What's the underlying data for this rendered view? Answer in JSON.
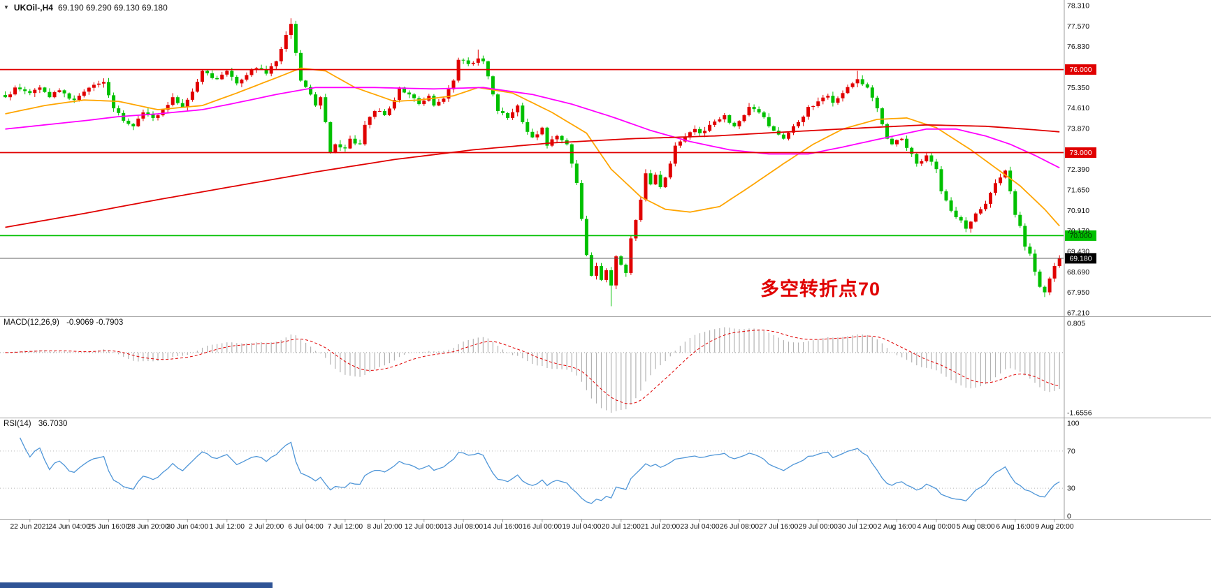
{
  "header": {
    "collapse_icon": "▼",
    "symbol_period": "UKOil-,H4",
    "ohlc": "69.190 69.290 69.130 69.180"
  },
  "annotation": {
    "text": "多空转折点70",
    "color": "#e00000"
  },
  "panels": {
    "macd": {
      "name_label": "MACD(12,26,9)",
      "values_label": "-0.9069 -0.7903",
      "axis": [
        {
          "label": "0.805",
          "value": 0.805
        },
        {
          "label": "-1.6556",
          "value": -1.6556
        }
      ]
    },
    "rsi": {
      "name_label": "RSI(14)",
      "value_label": "36.7030",
      "axis": [
        {
          "label": "100",
          "value": 100
        },
        {
          "label": "70",
          "value": 70
        },
        {
          "label": "30",
          "value": 30
        },
        {
          "label": "0",
          "value": 0
        }
      ],
      "levels": [
        70,
        30
      ]
    }
  },
  "bottom_bar": {
    "color": "#2f5496"
  },
  "chart_data": {
    "type": "candlestick",
    "symbol": "UKOil-",
    "timeframe": "H4",
    "price_axis": {
      "min": 67.21,
      "max": 78.31,
      "ticks": [
        {
          "label": "78.310",
          "value": 78.31
        },
        {
          "label": "77.570",
          "value": 77.57
        },
        {
          "label": "76.830",
          "value": 76.83
        },
        {
          "label": "75.350",
          "value": 75.35
        },
        {
          "label": "74.610",
          "value": 74.61
        },
        {
          "label": "73.870",
          "value": 73.87
        },
        {
          "label": "72.390",
          "value": 72.39
        },
        {
          "label": "71.650",
          "value": 71.65
        },
        {
          "label": "70.910",
          "value": 70.91
        },
        {
          "label": "70.170",
          "value": 70.17
        },
        {
          "label": "69.430",
          "value": 69.43
        },
        {
          "label": "68.690",
          "value": 68.69
        },
        {
          "label": "67.950",
          "value": 67.95
        },
        {
          "label": "67.210",
          "value": 67.21
        }
      ]
    },
    "hlines": [
      {
        "value": 76.0,
        "label": "76.000",
        "color": "#e00000",
        "text_color": "#ffffff"
      },
      {
        "value": 73.0,
        "label": "73.000",
        "color": "#e00000",
        "text_color": "#ffffff"
      },
      {
        "value": 70.0,
        "label": "70.000",
        "color": "#00c000",
        "text_color": "#003300"
      }
    ],
    "current_price": {
      "value": 69.18,
      "label": "69.180",
      "line_color": "#555555",
      "badge_color": "#000000",
      "text_color": "#ffffff"
    },
    "candle_count": 215,
    "seed": 11,
    "close_path": [
      [
        0,
        75.0
      ],
      [
        1,
        75.1
      ],
      [
        2,
        75.35
      ],
      [
        5,
        75.15
      ],
      [
        7,
        75.35
      ],
      [
        9,
        75.0
      ],
      [
        11,
        75.25
      ],
      [
        14,
        74.9
      ],
      [
        16,
        75.2
      ],
      [
        18,
        75.45
      ],
      [
        20,
        75.55
      ],
      [
        22,
        74.6
      ],
      [
        24,
        74.15
      ],
      [
        26,
        73.95
      ],
      [
        28,
        74.45
      ],
      [
        30,
        74.25
      ],
      [
        32,
        74.55
      ],
      [
        34,
        75.0
      ],
      [
        36,
        74.65
      ],
      [
        38,
        75.2
      ],
      [
        40,
        75.95
      ],
      [
        43,
        75.65
      ],
      [
        45,
        75.95
      ],
      [
        47,
        75.5
      ],
      [
        49,
        75.8
      ],
      [
        51,
        76.05
      ],
      [
        53,
        75.85
      ],
      [
        55,
        76.3
      ],
      [
        57,
        77.25
      ],
      [
        58,
        77.65
      ],
      [
        59,
        76.6
      ],
      [
        60,
        75.6
      ],
      [
        62,
        75.1
      ],
      [
        63,
        74.7
      ],
      [
        64,
        75.0
      ],
      [
        65,
        74.1
      ],
      [
        66,
        73.0
      ],
      [
        67,
        73.3
      ],
      [
        69,
        73.15
      ],
      [
        70,
        73.5
      ],
      [
        72,
        73.3
      ],
      [
        73,
        74.0
      ],
      [
        75,
        74.5
      ],
      [
        77,
        74.35
      ],
      [
        79,
        74.9
      ],
      [
        80,
        75.35
      ],
      [
        82,
        75.1
      ],
      [
        84,
        74.75
      ],
      [
        86,
        75.05
      ],
      [
        87,
        74.7
      ],
      [
        89,
        74.95
      ],
      [
        91,
        75.6
      ],
      [
        92,
        76.35
      ],
      [
        94,
        76.2
      ],
      [
        96,
        76.4
      ],
      [
        97,
        76.3
      ],
      [
        99,
        75.1
      ],
      [
        100,
        74.5
      ],
      [
        102,
        74.25
      ],
      [
        104,
        74.7
      ],
      [
        105,
        74.1
      ],
      [
        107,
        73.55
      ],
      [
        109,
        73.9
      ],
      [
        110,
        73.25
      ],
      [
        112,
        73.6
      ],
      [
        114,
        73.3
      ],
      [
        115,
        72.6
      ],
      [
        116,
        71.9
      ],
      [
        118,
        69.3
      ],
      [
        119,
        68.55
      ],
      [
        120,
        68.9
      ],
      [
        121,
        68.4
      ],
      [
        122,
        68.75
      ],
      [
        123,
        68.2
      ],
      [
        124,
        69.25
      ],
      [
        125,
        68.95
      ],
      [
        126,
        68.65
      ],
      [
        127,
        69.9
      ],
      [
        129,
        71.3
      ],
      [
        130,
        72.25
      ],
      [
        131,
        71.85
      ],
      [
        132,
        72.2
      ],
      [
        133,
        71.75
      ],
      [
        134,
        72.1
      ],
      [
        135,
        72.6
      ],
      [
        136,
        73.25
      ],
      [
        138,
        73.55
      ],
      [
        140,
        73.85
      ],
      [
        141,
        73.7
      ],
      [
        143,
        74.0
      ],
      [
        145,
        74.2
      ],
      [
        146,
        74.35
      ],
      [
        148,
        73.95
      ],
      [
        150,
        74.35
      ],
      [
        151,
        74.65
      ],
      [
        153,
        74.45
      ],
      [
        155,
        73.95
      ],
      [
        157,
        73.65
      ],
      [
        158,
        73.5
      ],
      [
        160,
        73.95
      ],
      [
        162,
        74.3
      ],
      [
        163,
        74.65
      ],
      [
        165,
        74.85
      ],
      [
        167,
        75.05
      ],
      [
        168,
        74.8
      ],
      [
        170,
        75.15
      ],
      [
        172,
        75.5
      ],
      [
        173,
        75.65
      ],
      [
        175,
        75.35
      ],
      [
        177,
        74.6
      ],
      [
        179,
        73.5
      ],
      [
        180,
        73.3
      ],
      [
        182,
        73.5
      ],
      [
        184,
        72.95
      ],
      [
        185,
        72.6
      ],
      [
        187,
        72.9
      ],
      [
        189,
        72.4
      ],
      [
        190,
        71.6
      ],
      [
        192,
        70.9
      ],
      [
        194,
        70.55
      ],
      [
        195,
        70.25
      ],
      [
        197,
        70.8
      ],
      [
        199,
        71.15
      ],
      [
        200,
        71.55
      ],
      [
        202,
        72.1
      ],
      [
        203,
        72.35
      ],
      [
        204,
        71.6
      ],
      [
        205,
        70.75
      ],
      [
        206,
        70.35
      ],
      [
        207,
        69.6
      ],
      [
        208,
        69.35
      ],
      [
        209,
        68.7
      ],
      [
        210,
        68.15
      ],
      [
        211,
        67.95
      ],
      [
        212,
        68.45
      ],
      [
        213,
        68.9
      ],
      [
        214,
        69.18
      ]
    ],
    "special_wicks": [
      {
        "i": 58,
        "high": 77.85
      },
      {
        "i": 96,
        "high": 76.72
      },
      {
        "i": 123,
        "low": 67.45
      },
      {
        "i": 173,
        "high": 75.95
      },
      {
        "i": 211,
        "low": 67.78
      }
    ],
    "ma_lines": [
      {
        "name": "ma-fast-orange",
        "color": "#ffa500",
        "points": [
          [
            0,
            74.4
          ],
          [
            8,
            74.7
          ],
          [
            16,
            74.9
          ],
          [
            23,
            74.85
          ],
          [
            31,
            74.55
          ],
          [
            40,
            74.7
          ],
          [
            47,
            75.15
          ],
          [
            55,
            75.7
          ],
          [
            60,
            76.05
          ],
          [
            65,
            75.95
          ],
          [
            71,
            75.35
          ],
          [
            79,
            74.85
          ],
          [
            84,
            74.9
          ],
          [
            91,
            75.05
          ],
          [
            96,
            75.35
          ],
          [
            103,
            75.15
          ],
          [
            111,
            74.45
          ],
          [
            118,
            73.7
          ],
          [
            123,
            72.4
          ],
          [
            129,
            71.4
          ],
          [
            134,
            70.95
          ],
          [
            139,
            70.85
          ],
          [
            145,
            71.05
          ],
          [
            151,
            71.75
          ],
          [
            158,
            72.6
          ],
          [
            164,
            73.3
          ],
          [
            170,
            73.85
          ],
          [
            177,
            74.2
          ],
          [
            183,
            74.25
          ],
          [
            189,
            73.9
          ],
          [
            196,
            73.1
          ],
          [
            201,
            72.45
          ],
          [
            206,
            71.8
          ],
          [
            211,
            70.95
          ],
          [
            214,
            70.35
          ]
        ]
      },
      {
        "name": "ma-mid-magenta",
        "color": "#ff00ff",
        "points": [
          [
            0,
            73.85
          ],
          [
            8,
            74.0
          ],
          [
            16,
            74.15
          ],
          [
            23,
            74.3
          ],
          [
            31,
            74.4
          ],
          [
            40,
            74.55
          ],
          [
            47,
            74.8
          ],
          [
            55,
            75.1
          ],
          [
            63,
            75.35
          ],
          [
            75,
            75.35
          ],
          [
            87,
            75.3
          ],
          [
            97,
            75.35
          ],
          [
            107,
            75.1
          ],
          [
            115,
            74.75
          ],
          [
            123,
            74.3
          ],
          [
            131,
            73.8
          ],
          [
            139,
            73.4
          ],
          [
            147,
            73.1
          ],
          [
            155,
            72.95
          ],
          [
            163,
            72.95
          ],
          [
            170,
            73.2
          ],
          [
            179,
            73.55
          ],
          [
            187,
            73.85
          ],
          [
            193,
            73.85
          ],
          [
            199,
            73.6
          ],
          [
            204,
            73.3
          ],
          [
            209,
            72.9
          ],
          [
            214,
            72.45
          ]
        ]
      },
      {
        "name": "ma-slow-red",
        "color": "#e00000",
        "points": [
          [
            0,
            70.3
          ],
          [
            16,
            70.8
          ],
          [
            31,
            71.3
          ],
          [
            47,
            71.8
          ],
          [
            63,
            72.3
          ],
          [
            79,
            72.75
          ],
          [
            95,
            73.1
          ],
          [
            111,
            73.35
          ],
          [
            127,
            73.5
          ],
          [
            144,
            73.6
          ],
          [
            159,
            73.75
          ],
          [
            175,
            73.9
          ],
          [
            187,
            74.0
          ],
          [
            199,
            73.95
          ],
          [
            207,
            73.85
          ],
          [
            214,
            73.75
          ]
        ]
      }
    ],
    "time_labels": [
      "22 Jun 2021",
      "24 Jun 04:00",
      "25 Jun 16:00",
      "28 Jun 20:00",
      "30 Jun 04:00",
      "1 Jul 12:00",
      "2 Jul 20:00",
      "6 Jul 04:00",
      "7 Jul 12:00",
      "8 Jul 20:00",
      "12 Jul 00:00",
      "13 Jul 08:00",
      "14 Jul 16:00",
      "16 Jul 00:00",
      "19 Jul 04:00",
      "20 Jul 12:00",
      "21 Jul 20:00",
      "23 Jul 04:00",
      "26 Jul 08:00",
      "27 Jul 16:00",
      "29 Jul 00:00",
      "30 Jul 12:00",
      "2 Aug 16:00",
      "4 Aug 00:00",
      "5 Aug 08:00",
      "6 Aug 16:00",
      "9 Aug 20:00"
    ],
    "colors": {
      "up": "#e00000",
      "down": "#00c000",
      "macd_hist": "#b3b3b3",
      "macd_signal": "#e00000",
      "rsi_line": "#4f96d8",
      "grid": "#9e9e9e",
      "text": "#111111"
    }
  }
}
